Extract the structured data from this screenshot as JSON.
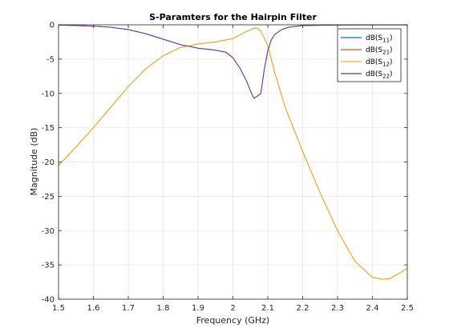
{
  "chart_data": {
    "type": "line",
    "title": "S-Paramters for the Hairpin Filter",
    "xlabel": "Frequency (GHz)",
    "ylabel": "Magnitude (dB)",
    "xlim": [
      1.5,
      2.5
    ],
    "ylim": [
      -40,
      0
    ],
    "x_ticks": [
      "1.5",
      "1.6",
      "1.7",
      "1.8",
      "1.9",
      "2",
      "2.1",
      "2.2",
      "2.3",
      "2.4",
      "2.5"
    ],
    "y_ticks": [
      "0",
      "-5",
      "-10",
      "-15",
      "-20",
      "-25",
      "-30",
      "-35",
      "-40"
    ],
    "grid": true,
    "legend_position": "top-right",
    "series": [
      {
        "name": "dB(S11)",
        "name_main": "dB(S",
        "name_sub": "11",
        "name_tail": ")",
        "color": "#0072BD",
        "x": [
          1.5,
          1.55,
          1.6,
          1.65,
          1.7,
          1.75,
          1.8,
          1.85,
          1.88,
          1.9,
          1.95,
          1.98,
          2.0,
          2.02,
          2.04,
          2.05,
          2.06,
          2.07,
          2.08,
          2.09,
          2.1,
          2.11,
          2.12,
          2.14,
          2.16,
          2.2,
          2.3,
          2.4,
          2.5
        ],
        "y": [
          -0.05,
          -0.1,
          -0.2,
          -0.35,
          -0.7,
          -1.3,
          -2.1,
          -2.9,
          -3.2,
          -3.4,
          -3.7,
          -4.0,
          -4.8,
          -6.3,
          -8.3,
          -9.6,
          -10.7,
          -10.4,
          -10.0,
          -6.5,
          -3.8,
          -2.2,
          -1.4,
          -0.7,
          -0.35,
          -0.1,
          -0.02,
          -0.01,
          -0.01
        ]
      },
      {
        "name": "dB(S21)",
        "name_main": "dB(S",
        "name_sub": "21",
        "name_tail": ")",
        "color": "#D95319",
        "x": [
          1.5,
          1.55,
          1.6,
          1.65,
          1.7,
          1.75,
          1.8,
          1.85,
          1.9,
          1.95,
          2.0,
          2.03,
          2.06,
          2.07,
          2.08,
          2.1,
          2.12,
          2.15,
          2.2,
          2.25,
          2.3,
          2.35,
          2.4,
          2.43,
          2.45,
          2.5
        ],
        "y": [
          -20.5,
          -17.8,
          -15.0,
          -12.0,
          -9.0,
          -6.4,
          -4.5,
          -3.3,
          -2.8,
          -2.5,
          -2.0,
          -1.2,
          -0.5,
          -0.5,
          -0.9,
          -3.0,
          -7.0,
          -12.0,
          -18.5,
          -24.5,
          -30.0,
          -34.5,
          -36.8,
          -37.1,
          -37.0,
          -35.5
        ]
      },
      {
        "name": "dB(S12)",
        "name_main": "dB(S",
        "name_sub": "12",
        "name_tail": ")",
        "color": "#EDB120",
        "x": [
          1.5,
          1.55,
          1.6,
          1.65,
          1.7,
          1.75,
          1.8,
          1.85,
          1.9,
          1.95,
          2.0,
          2.03,
          2.06,
          2.07,
          2.08,
          2.1,
          2.12,
          2.15,
          2.2,
          2.25,
          2.3,
          2.35,
          2.4,
          2.43,
          2.45,
          2.5
        ],
        "y": [
          -20.5,
          -17.8,
          -15.0,
          -12.0,
          -9.0,
          -6.4,
          -4.5,
          -3.3,
          -2.8,
          -2.5,
          -2.0,
          -1.2,
          -0.5,
          -0.5,
          -0.9,
          -3.0,
          -7.0,
          -12.0,
          -18.5,
          -24.5,
          -30.0,
          -34.5,
          -36.8,
          -37.1,
          -37.0,
          -35.5
        ]
      },
      {
        "name": "dB(S22)",
        "name_main": "dB(S",
        "name_sub": "22",
        "name_tail": ")",
        "color": "#7E2F8E",
        "x": [
          1.5,
          1.55,
          1.6,
          1.65,
          1.7,
          1.75,
          1.8,
          1.85,
          1.88,
          1.9,
          1.95,
          1.98,
          2.0,
          2.02,
          2.04,
          2.05,
          2.06,
          2.07,
          2.08,
          2.09,
          2.1,
          2.11,
          2.12,
          2.14,
          2.16,
          2.2,
          2.3,
          2.4,
          2.5
        ],
        "y": [
          -0.05,
          -0.1,
          -0.2,
          -0.35,
          -0.7,
          -1.3,
          -2.1,
          -2.9,
          -3.2,
          -3.4,
          -3.7,
          -4.0,
          -4.8,
          -6.3,
          -8.3,
          -9.6,
          -10.7,
          -10.4,
          -10.0,
          -6.5,
          -3.8,
          -2.2,
          -1.4,
          -0.7,
          -0.35,
          -0.1,
          -0.02,
          -0.01,
          -0.01
        ]
      }
    ]
  }
}
